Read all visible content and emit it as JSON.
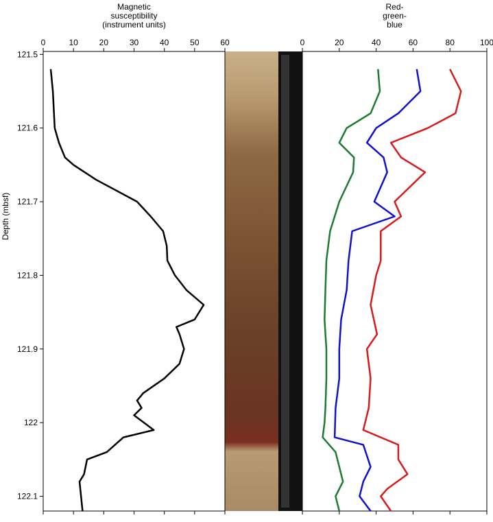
{
  "chart_data": [
    {
      "type": "line",
      "title_lines": [
        "Magnetic",
        "susceptibility",
        "(instrument units)"
      ],
      "ylabel": "Depth (mbsf)",
      "xlim": [
        0,
        60
      ],
      "xticks": [
        0,
        10,
        20,
        30,
        40,
        50,
        60
      ],
      "ylim": [
        121.496,
        122.12
      ],
      "yticks": [
        121.5,
        121.6,
        121.7,
        121.8,
        121.9,
        122,
        122.1
      ],
      "series": [
        {
          "color": "#000000",
          "y": [
            121.52,
            121.55,
            121.6,
            121.62,
            121.64,
            121.65,
            121.67,
            121.7,
            121.72,
            121.74,
            121.76,
            121.78,
            121.8,
            121.82,
            121.84,
            121.86,
            121.87,
            121.88,
            121.9,
            121.92,
            121.94,
            121.96,
            121.97,
            121.98,
            121.99,
            122.01,
            122.02,
            122.04,
            122.05,
            122.07,
            122.08,
            122.1,
            122.12
          ],
          "values": [
            2.5,
            3.2,
            3.8,
            5.2,
            7.2,
            10,
            17.4,
            31,
            35.5,
            39.6,
            40.8,
            41,
            43.5,
            47.3,
            53,
            50,
            44,
            45,
            46.5,
            45,
            40,
            33,
            31,
            32.5,
            30,
            36.5,
            26.5,
            21,
            14.5,
            13.5,
            12,
            12.5,
            13
          ]
        }
      ]
    },
    {
      "type": "line",
      "title_lines": [
        "Red-",
        "green-",
        "blue"
      ],
      "xlim": [
        0,
        100
      ],
      "xticks": [
        0,
        20,
        40,
        60,
        80,
        100
      ],
      "ylim": [
        121.496,
        122.12
      ],
      "series": [
        {
          "color": "#1e7a2e",
          "y": [
            121.52,
            121.55,
            121.58,
            121.6,
            121.62,
            121.64,
            121.66,
            121.7,
            121.74,
            121.78,
            121.82,
            121.86,
            121.9,
            121.94,
            121.98,
            122.0,
            122.02,
            122.04,
            122.06,
            122.08,
            122.1,
            122.12
          ],
          "values": [
            41,
            42,
            37,
            24,
            20,
            28,
            27.5,
            20,
            15,
            13,
            12.5,
            12,
            13,
            13,
            12.5,
            12,
            11,
            18,
            20,
            22,
            18,
            20
          ]
        },
        {
          "color": "#1010d0",
          "y": [
            121.52,
            121.55,
            121.58,
            121.6,
            121.62,
            121.64,
            121.66,
            121.7,
            121.72,
            121.74,
            121.78,
            121.82,
            121.86,
            121.9,
            121.94,
            121.98,
            122.02,
            122.03,
            122.06,
            122.08,
            122.1,
            122.12
          ],
          "values": [
            62,
            64,
            52,
            40,
            35,
            44,
            46,
            39,
            50,
            27,
            25,
            24,
            21,
            20,
            20,
            18,
            17.5,
            33,
            37,
            33,
            31,
            37
          ]
        },
        {
          "color": "#d81a1a",
          "y": [
            121.52,
            121.55,
            121.58,
            121.6,
            121.62,
            121.64,
            121.66,
            121.7,
            121.72,
            121.74,
            121.78,
            121.8,
            121.84,
            121.88,
            121.9,
            121.94,
            121.98,
            122.01,
            122.03,
            122.05,
            122.07,
            122.09,
            122.1,
            122.12
          ],
          "values": [
            80,
            86,
            83,
            68,
            48,
            53.5,
            66.5,
            50,
            53.5,
            42.5,
            42.5,
            40,
            37,
            40.5,
            35,
            37,
            36,
            33,
            52,
            52,
            57,
            46,
            42.5,
            48
          ]
        }
      ]
    }
  ]
}
